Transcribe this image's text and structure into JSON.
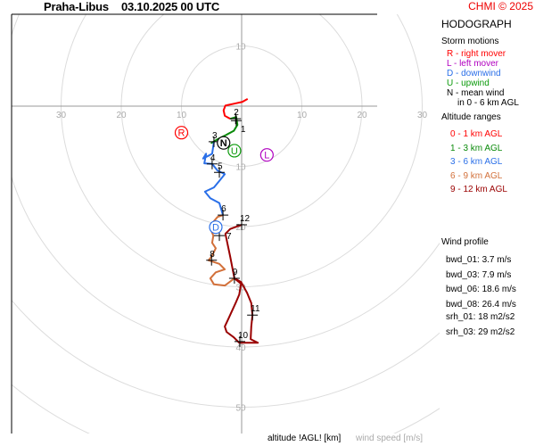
{
  "header": {
    "station": "Praha-Libus",
    "datetime": "03.10.2025 00 UTC",
    "copyright": "CHMI © 2025"
  },
  "panel": {
    "title": "HODOGRAPH",
    "storm_motions_title": "Storm motions",
    "storm_motions": [
      {
        "text": "R - right mover",
        "color": "#ff0000"
      },
      {
        "text": "L - left mover",
        "color": "#b000c0"
      },
      {
        "text": "D - downwind",
        "color": "#2a6fe8"
      },
      {
        "text": "U - upwind",
        "color": "#0a9a0a"
      },
      {
        "text": "N - mean wind",
        "color": "#000000"
      },
      {
        "text": "in 0 - 6 km AGL",
        "color": "#000000"
      }
    ],
    "altitude_title": "Altitude ranges",
    "altitude_ranges": [
      {
        "text": "0 - 1 km AGL",
        "color": "#ff0000"
      },
      {
        "text": "1 - 3 km AGL",
        "color": "#0a8a0a"
      },
      {
        "text": "3 - 6 km AGL",
        "color": "#2a6fe8"
      },
      {
        "text": "6 - 9 km AGL",
        "color": "#d2703a"
      },
      {
        "text": "9 - 12 km AGL",
        "color": "#9a0000"
      }
    ],
    "wind_profile_title": "Wind profile",
    "wind_profile": [
      "bwd_01: 3.7 m/s",
      "bwd_03: 7.9 m/s",
      "bwd_06: 18.6 m/s",
      "bwd_08: 26.4 m/s"
    ],
    "helicity": [
      "srh_01: 18 m2/s2",
      "srh_03: 29 m2/s2"
    ]
  },
  "footer": {
    "altitude_label": "altitude !AGL! [km]",
    "speed_label": "wind speed [m/s]"
  },
  "chart_data": {
    "type": "line",
    "title": "HODOGRAPH",
    "xlabel": "wind speed [m/s]",
    "rings": [
      10,
      20,
      30,
      40,
      50,
      60
    ],
    "x_tick_labels": [
      "30",
      "20",
      "10",
      "10",
      "20",
      "30"
    ],
    "x_ticks": [
      -30,
      -20,
      -10,
      10,
      20,
      30
    ],
    "y_tick_labels": [
      "10",
      "10",
      "20",
      "30",
      "40",
      "50"
    ],
    "y_ticks": [
      10,
      -10,
      -20,
      -30,
      -40,
      -50
    ],
    "series": [
      {
        "name": "0 - 1 km AGL",
        "color": "#ff0000",
        "points": [
          [
            1.0,
            1.2
          ],
          [
            0.1,
            0.7
          ],
          [
            -1.3,
            0.4
          ],
          [
            -2.7,
            0.1
          ],
          [
            -3.0,
            -0.7
          ],
          [
            -2.8,
            -1.6
          ],
          [
            -1.9,
            -2.1
          ]
        ]
      },
      {
        "name": "1 - 3 km AGL",
        "color": "#0a8a0a",
        "points": [
          [
            -1.9,
            -2.1
          ],
          [
            -0.9,
            -1.8
          ],
          [
            -0.7,
            -3.1
          ],
          [
            -1.3,
            -4.1
          ],
          [
            -2.8,
            -4.9
          ],
          [
            -4.0,
            -5.5
          ],
          [
            -5.0,
            -6.1
          ],
          [
            -4.6,
            -5.9
          ]
        ]
      },
      {
        "name": "3 - 6 km AGL",
        "color": "#2a6fe8",
        "points": [
          [
            -4.6,
            -5.9
          ],
          [
            -4.9,
            -7.9
          ],
          [
            -6.4,
            -8.7
          ],
          [
            -5.9,
            -7.9
          ],
          [
            -6.2,
            -9.5
          ],
          [
            -4.9,
            -9.6
          ],
          [
            -4.0,
            -10.7
          ],
          [
            -2.8,
            -11.3
          ],
          [
            -3.7,
            -12.4
          ],
          [
            -4.6,
            -13.5
          ],
          [
            -6.1,
            -14.2
          ],
          [
            -5.2,
            -15.3
          ],
          [
            -3.7,
            -16.1
          ],
          [
            -3.1,
            -18.1
          ]
        ]
      },
      {
        "name": "6 - 9 km AGL",
        "color": "#d2703a",
        "points": [
          [
            -3.1,
            -18.1
          ],
          [
            -4.0,
            -18.4
          ],
          [
            -4.6,
            -19.1
          ],
          [
            -5.2,
            -20.3
          ],
          [
            -4.7,
            -21.5
          ],
          [
            -4.9,
            -22.7
          ],
          [
            -4.3,
            -23.6
          ],
          [
            -5.0,
            -25.0
          ],
          [
            -5.5,
            -25.6
          ],
          [
            -3.7,
            -26.2
          ],
          [
            -2.8,
            -27.1
          ],
          [
            -4.3,
            -27.6
          ],
          [
            -5.2,
            -28.6
          ],
          [
            -4.6,
            -29.6
          ],
          [
            -2.8,
            -29.8
          ],
          [
            -1.2,
            -28.6
          ]
        ]
      },
      {
        "name": "9 - 12 km AGL",
        "color": "#9a0000",
        "points": [
          [
            -1.2,
            -28.6
          ],
          [
            -0.1,
            -29.5
          ],
          [
            -0.4,
            -31.3
          ],
          [
            -1.0,
            -32.7
          ],
          [
            -2.1,
            -35.1
          ],
          [
            -2.8,
            -36.6
          ],
          [
            -2.5,
            -37.5
          ],
          [
            -1.3,
            -38.4
          ],
          [
            -0.4,
            -39.3
          ],
          [
            2.7,
            -39.3
          ],
          [
            1.5,
            -38.7
          ],
          [
            1.6,
            -36.6
          ],
          [
            1.8,
            -34.7
          ],
          [
            1.6,
            -32.7
          ],
          [
            0.9,
            -31.0
          ],
          [
            -0.1,
            -29.2
          ],
          [
            -1.2,
            -28.6
          ],
          [
            -1.9,
            -25.0
          ],
          [
            -2.7,
            -21.2
          ],
          [
            -1.9,
            -20.4
          ],
          [
            0,
            -19.7
          ]
        ]
      }
    ],
    "altitude_markers": [
      {
        "label": "1",
        "u": -0.9,
        "v": -2.4
      },
      {
        "label": "2",
        "u": -1.0,
        "v": -2.1
      },
      {
        "label": "3",
        "u": -4.6,
        "v": -5.9
      },
      {
        "label": "4",
        "u": -4.9,
        "v": -9.6
      },
      {
        "label": "5",
        "u": -3.7,
        "v": -11.0
      },
      {
        "label": "6",
        "u": -3.1,
        "v": -18.1
      },
      {
        "label": "7",
        "u": -3.7,
        "v": -21.5
      },
      {
        "label": "8",
        "u": -5.0,
        "v": -25.6
      },
      {
        "label": "9",
        "u": -1.2,
        "v": -28.6
      },
      {
        "label": "10",
        "u": -0.3,
        "v": -39.1
      },
      {
        "label": "11",
        "u": 1.8,
        "v": -34.7
      },
      {
        "label": "12",
        "u": 0,
        "v": -19.7
      }
    ],
    "storm_motions": [
      {
        "label": "R",
        "u": -10.0,
        "v": -4.4,
        "color": "#ff0000"
      },
      {
        "label": "L",
        "u": 4.2,
        "v": -8.1,
        "color": "#b000c0"
      },
      {
        "label": "D",
        "u": -4.3,
        "v": -20.1,
        "color": "#2a6fe8"
      },
      {
        "label": "U",
        "u": -1.2,
        "v": -7.4,
        "color": "#0a9a0a"
      },
      {
        "label": "N",
        "u": -3.0,
        "v": -6.1,
        "color": "#000000"
      }
    ]
  }
}
